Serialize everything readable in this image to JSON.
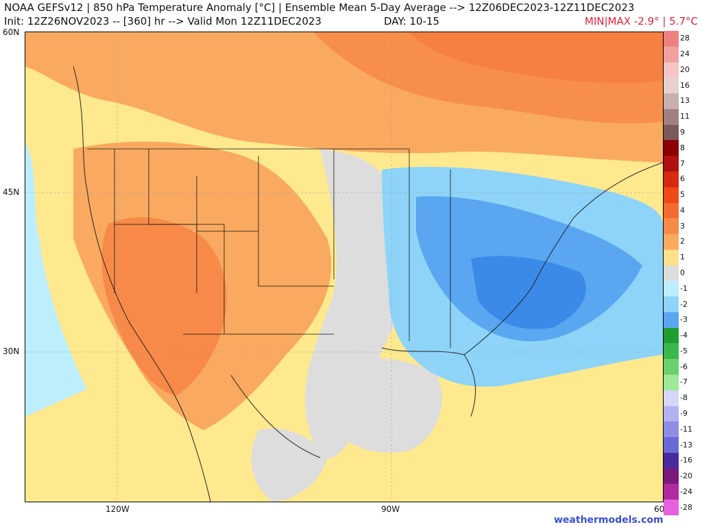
{
  "title_line1": "NOAA GEFSv12 | 850 hPa Temperature Anomaly [°C] | Ensemble Mean 5-Day Average --> 12Z06DEC2023-12Z11DEC2023",
  "title_line2": "Init: 12Z26NOV2023 -- [360] hr --> Valid Mon 12Z11DEC2023",
  "day_label": "DAY: 10-15",
  "min_max": "MIN|MAX -2.9° | 5.7°C",
  "credit": "weathermodels.com",
  "map": {
    "lat_labels": [
      "60N",
      "45N",
      "30N"
    ],
    "lon_labels": [
      "120W",
      "90W",
      "60"
    ],
    "lon_range": [
      -130,
      -60
    ],
    "lat_range": [
      16,
      60
    ],
    "regions": [
      {
        "name": "cold-anomaly-eastern-us",
        "anomaly": -3
      },
      {
        "name": "warm-anomaly-western-us",
        "anomaly": 3
      },
      {
        "name": "warm-anomaly-eastern-canada",
        "anomaly": 5
      },
      {
        "name": "near-normal-central-us",
        "anomaly": 0
      }
    ]
  },
  "colorbar": {
    "labels": [
      "28",
      "24",
      "20",
      "16",
      "13",
      "11",
      "9",
      "8",
      "7",
      "6",
      "5",
      "4",
      "3",
      "2",
      "1",
      "0",
      "-1",
      "-2",
      "-3",
      "-4",
      "-5",
      "-6",
      "-7",
      "-8",
      "-9",
      "-11",
      "-13",
      "-16",
      "-20",
      "-24",
      "-28"
    ],
    "colors": [
      "#f08080",
      "#f3a0a0",
      "#f6c6c6",
      "#e8d0d0",
      "#c8b0b0",
      "#a08080",
      "#7a5a5a",
      "#8b0000",
      "#b01010",
      "#d62a10",
      "#ee4a18",
      "#f46a30",
      "#f78a48",
      "#f9aa60",
      "#fde08a",
      "#dddddd",
      "#bdeefc",
      "#8dd4f8",
      "#5aa6f0",
      "#1e9e2e",
      "#3ab84a",
      "#6ad26a",
      "#a0e89a",
      "#d6d6f8",
      "#b2b2f2",
      "#8e8ee6",
      "#6a6ad6",
      "#4a2aa0",
      "#7a1a7a",
      "#b02aa0",
      "#e860e0"
    ]
  }
}
